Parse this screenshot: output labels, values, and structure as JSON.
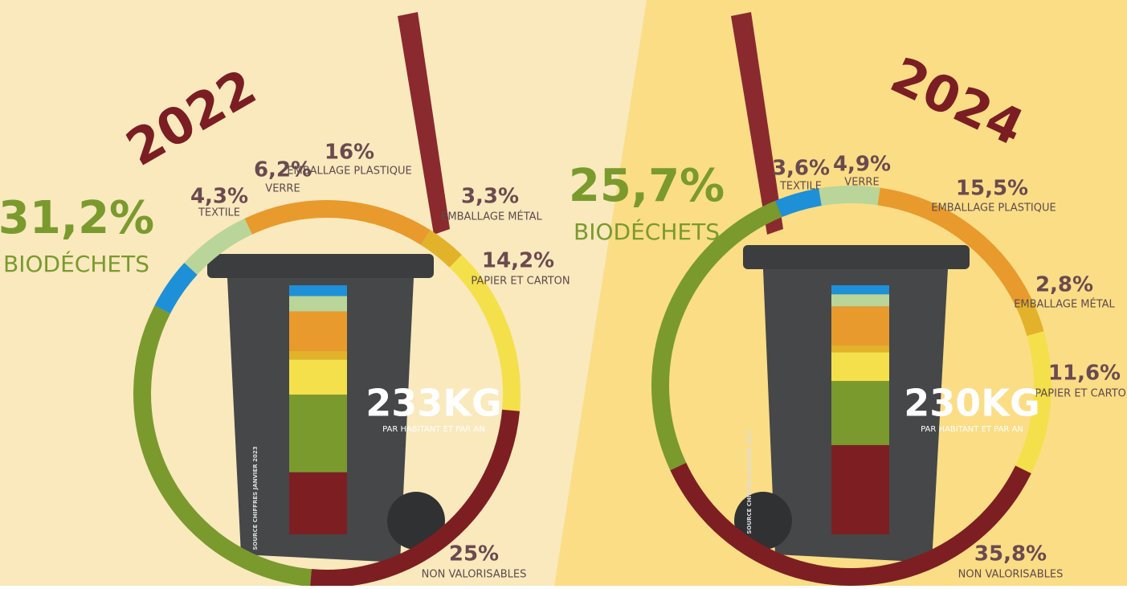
{
  "chart_data": [
    {
      "type": "donut",
      "title": "2022",
      "categories": [
        "BIODÉCHETS",
        "TEXTILE",
        "VERRE",
        "EMBALLAGE PLASTIQUE",
        "EMBALLAGE MÉTAL",
        "PAPIER ET CARTON",
        "NON VALORISABLES"
      ],
      "values": [
        31.2,
        4.3,
        6.2,
        16,
        3.3,
        14.2,
        25
      ],
      "value_labels": [
        "31,2%",
        "4,3%",
        "6,2%",
        "16%",
        "3,3%",
        "14,2%",
        "25%"
      ],
      "colors": [
        "#7a9a2e",
        "#1e90d8",
        "#b9d59a",
        "#e89a2c",
        "#e2b22a",
        "#f4e04a",
        "#7d1f22"
      ],
      "total_label": "233KG",
      "total_caption": "PAR HABITANT ET PAR AN",
      "source": "SOURCE CHIFFRES JANVIER 2023"
    },
    {
      "type": "donut",
      "title": "2024",
      "categories": [
        "BIODÉCHETS",
        "TEXTILE",
        "VERRE",
        "EMBALLAGE PLASTIQUE",
        "EMBALLAGE MÉTAL",
        "PAPIER ET CARTON",
        "NON VALORISABLES"
      ],
      "values": [
        25.7,
        3.6,
        4.9,
        15.5,
        2.8,
        11.6,
        35.8
      ],
      "value_labels": [
        "25,7%",
        "3,6%",
        "4,9%",
        "15,5%",
        "2,8%",
        "11,6%",
        "35,8%"
      ],
      "colors": [
        "#7a9a2e",
        "#1e90d8",
        "#b9d59a",
        "#e89a2c",
        "#e2b22a",
        "#f4e04a",
        "#7d1f22"
      ],
      "total_label": "230KG",
      "total_caption": "PAR HABITANT ET PAR AN",
      "source": "SOURCE CHIFFRES JANVIER 2023"
    }
  ]
}
